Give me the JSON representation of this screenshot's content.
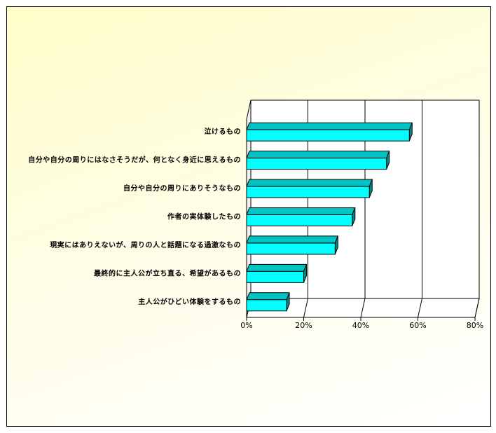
{
  "chart_data": {
    "type": "bar",
    "orientation": "horizontal",
    "style": "3d",
    "categories": [
      "泣けるもの",
      "自分や自分の周りにはなさそうだが、何となく身近に思えるもの",
      "自分や自分の周りにありそうなもの",
      "作者の実体験したもの",
      "現実にはありえないが、周りの人と話題になる過激なもの",
      "最終的に主人公が立ち直る、希望があるもの",
      "主人公がひどい体験をするもの"
    ],
    "values": [
      57,
      49,
      43,
      37,
      31,
      20,
      14
    ],
    "unit": "%",
    "xlim": [
      0,
      80
    ],
    "ticks": [
      "0%",
      "20%",
      "40%",
      "60%",
      "80%"
    ],
    "tick_values": [
      0,
      20,
      40,
      60,
      80
    ],
    "grid": true,
    "colors": {
      "bar_front": "#00ffff",
      "bar_top": "#00c4c4",
      "bar_side": "#008b8b",
      "background_top": "#ffffc9",
      "background_bottom": "#ffffff"
    }
  }
}
